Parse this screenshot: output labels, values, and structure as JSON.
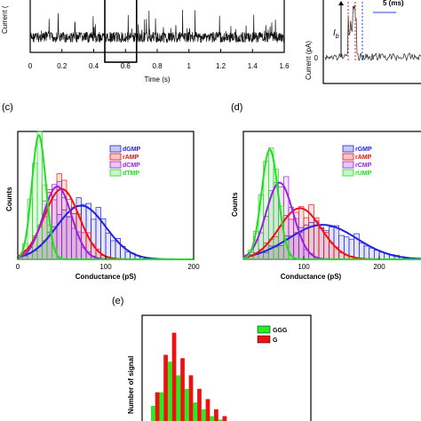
{
  "chart_data": [
    {
      "panel": "top-left",
      "type": "line",
      "xlabel": "Time (s)",
      "ylabel": "Current (",
      "xticks": [
        "0",
        "0.2",
        "0.4",
        "0.6",
        "0.8",
        "1",
        "1.2",
        "1.4",
        "1.6"
      ],
      "xlim": [
        0,
        1.6
      ],
      "highlight_window": [
        0.47,
        0.67
      ]
    },
    {
      "panel": "top-right",
      "type": "line",
      "ylabel": "Current (pA)",
      "ytick": "0",
      "scale_label": "5 (ms)",
      "annotation": "I_b",
      "annotation_main": "I",
      "annotation_sub": "b"
    },
    {
      "panel": "(c)",
      "type": "bar",
      "xlabel": "Conductance (pS)",
      "ylabel": "Counts",
      "xlim": [
        0,
        200
      ],
      "xticks": [
        "0",
        "100",
        "200"
      ],
      "series": [
        {
          "name": "dGMP",
          "color": "#2222dd",
          "peak": 72,
          "sigma": 28,
          "height": 0.42
        },
        {
          "name": "rAMP",
          "color": "#ee1111",
          "peak": 50,
          "sigma": 20,
          "height": 0.55
        },
        {
          "name": "dCMP",
          "color": "#9922dd",
          "peak": 45,
          "sigma": 16,
          "height": 0.57
        },
        {
          "name": "dTMP",
          "color": "#22dd22",
          "peak": 24,
          "sigma": 8,
          "height": 0.97
        }
      ]
    },
    {
      "panel": "(d)",
      "type": "bar",
      "xlabel": "Conductance (pS)",
      "ylabel": "Counts",
      "xlim": [
        20,
        260
      ],
      "xticks": [
        "100",
        "200"
      ],
      "series": [
        {
          "name": "rGMP",
          "color": "#2222dd",
          "peak": 125,
          "sigma": 45,
          "height": 0.27
        },
        {
          "name": "rAMP",
          "color": "#ee1111",
          "peak": 95,
          "sigma": 28,
          "height": 0.4
        },
        {
          "name": "rCMP",
          "color": "#9922dd",
          "peak": 68,
          "sigma": 18,
          "height": 0.6
        },
        {
          "name": "rUMP",
          "color": "#22dd22",
          "peak": 55,
          "sigma": 11,
          "height": 0.86
        }
      ]
    },
    {
      "panel": "(e)",
      "type": "bar",
      "ylabel": "Number of signal",
      "series": [
        {
          "name": "GGG",
          "color": "#22ee22",
          "values": [
            12,
            20,
            38,
            30,
            22,
            14,
            10,
            6,
            4,
            2,
            0,
            0,
            2,
            1,
            2,
            1,
            1,
            0,
            1
          ]
        },
        {
          "name": "G",
          "color": "#ee1111",
          "values": [
            20,
            42,
            55,
            40,
            30,
            22,
            16,
            10,
            6,
            3,
            1,
            0,
            0,
            0,
            0,
            0,
            0,
            0,
            0
          ]
        }
      ]
    }
  ],
  "panel_labels": {
    "c": "(c)",
    "d": "(d)",
    "e": "(e)"
  }
}
